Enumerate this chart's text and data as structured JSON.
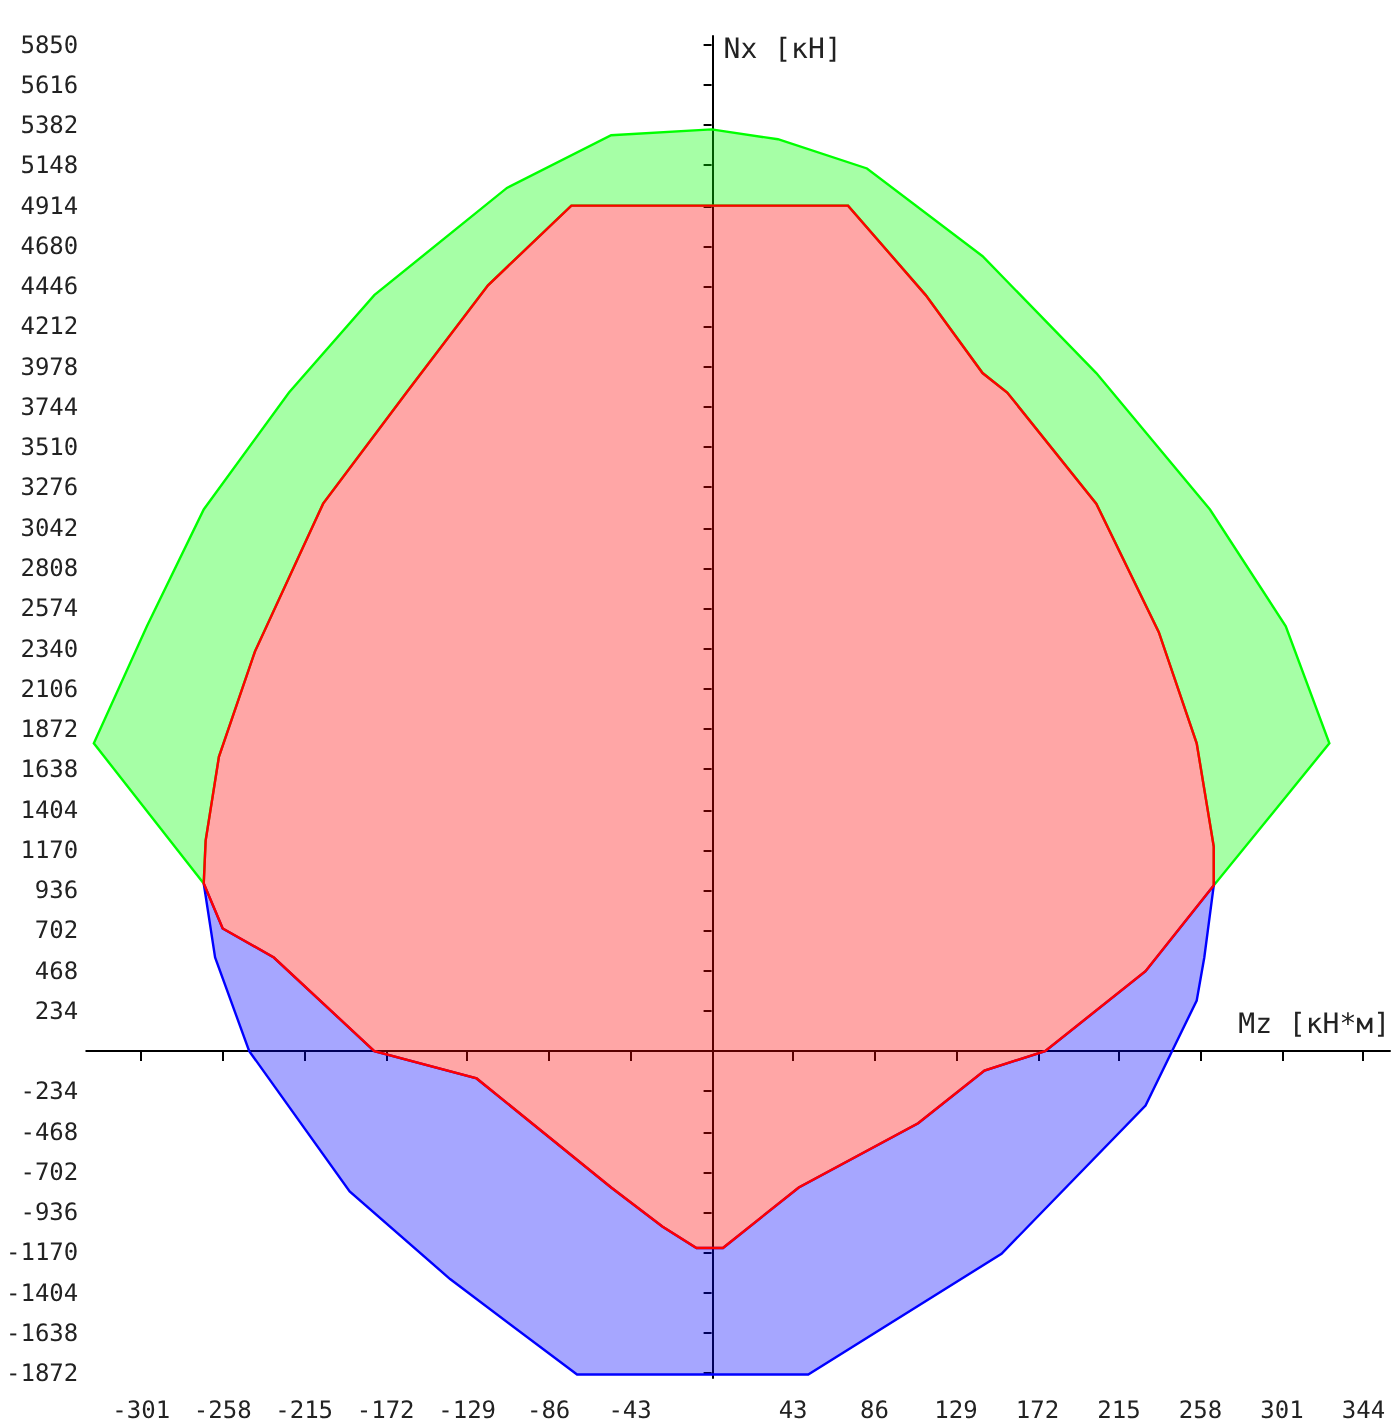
{
  "chart_data": {
    "type": "area",
    "xlabel": "Mz [кН*м]",
    "ylabel": "Nx [кН]",
    "xlim": [
      -330,
      358
    ],
    "ylim": [
      -1900,
      5900
    ],
    "xticks": [
      -301,
      -258,
      -215,
      -172,
      -129,
      -86,
      -43,
      43,
      86,
      129,
      172,
      215,
      258,
      301,
      344
    ],
    "yticks": [
      -1872,
      -1638,
      -1404,
      -1170,
      -936,
      -702,
      -468,
      -234,
      234,
      468,
      702,
      936,
      1170,
      1404,
      1638,
      1872,
      2106,
      2340,
      2574,
      2808,
      3042,
      3276,
      3510,
      3744,
      3978,
      4212,
      4446,
      4680,
      4914,
      5148,
      5382,
      5616,
      5850
    ],
    "series": [
      {
        "color": "#00ff00",
        "x": [
          -268,
          -326,
          -298,
          -268,
          -223,
          -178,
          -108,
          -53,
          0,
          35,
          82,
          143,
          203,
          263,
          303,
          326,
          265,
          265,
          256,
          236,
          203,
          156,
          143,
          113,
          72,
          -74,
          -118,
          -161,
          -205,
          -241,
          -260,
          -267
        ],
        "values": [
          974,
          1789,
          2469,
          3148,
          3828,
          4394,
          5017,
          5323,
          5357,
          5300,
          5130,
          4620,
          3941,
          3148,
          2469,
          1789,
          963,
          1189,
          1789,
          2435,
          3182,
          3828,
          3941,
          4394,
          4914,
          4914,
          4451,
          3828,
          3182,
          2322,
          1710,
          1223
        ]
      },
      {
        "color": "#0000ff",
        "x": [
          -268,
          -262,
          -244,
          -191,
          -138,
          -71,
          51,
          153,
          229,
          256,
          260,
          265,
          229,
          176,
          144,
          109,
          46,
          6,
          -8,
          -26,
          -53,
          -124,
          -178,
          -231,
          -258
        ],
        "values": [
          974,
          544,
          0,
          -815,
          -1325,
          -1880,
          -1880,
          -1178,
          -317,
          294,
          544,
          963,
          464,
          0,
          -113,
          -419,
          -793,
          -1144,
          -1144,
          -1019,
          -793,
          -159,
          0,
          544,
          713
        ]
      },
      {
        "color": "#ff0000",
        "x": [
          -74,
          72,
          113,
          143,
          156,
          203,
          236,
          256,
          265,
          265,
          229,
          176,
          144,
          109,
          46,
          6,
          -8,
          -26,
          -53,
          -124,
          -178,
          -231,
          -258,
          -268,
          -267,
          -260,
          -241,
          -205,
          -161,
          -118
        ],
        "values": [
          4914,
          4914,
          4394,
          3941,
          3828,
          3182,
          2435,
          1789,
          1189,
          963,
          464,
          0,
          -113,
          -419,
          -793,
          -1144,
          -1144,
          -1019,
          -793,
          -159,
          0,
          544,
          713,
          974,
          1223,
          1710,
          2322,
          3182,
          3828,
          4451
        ]
      }
    ]
  }
}
